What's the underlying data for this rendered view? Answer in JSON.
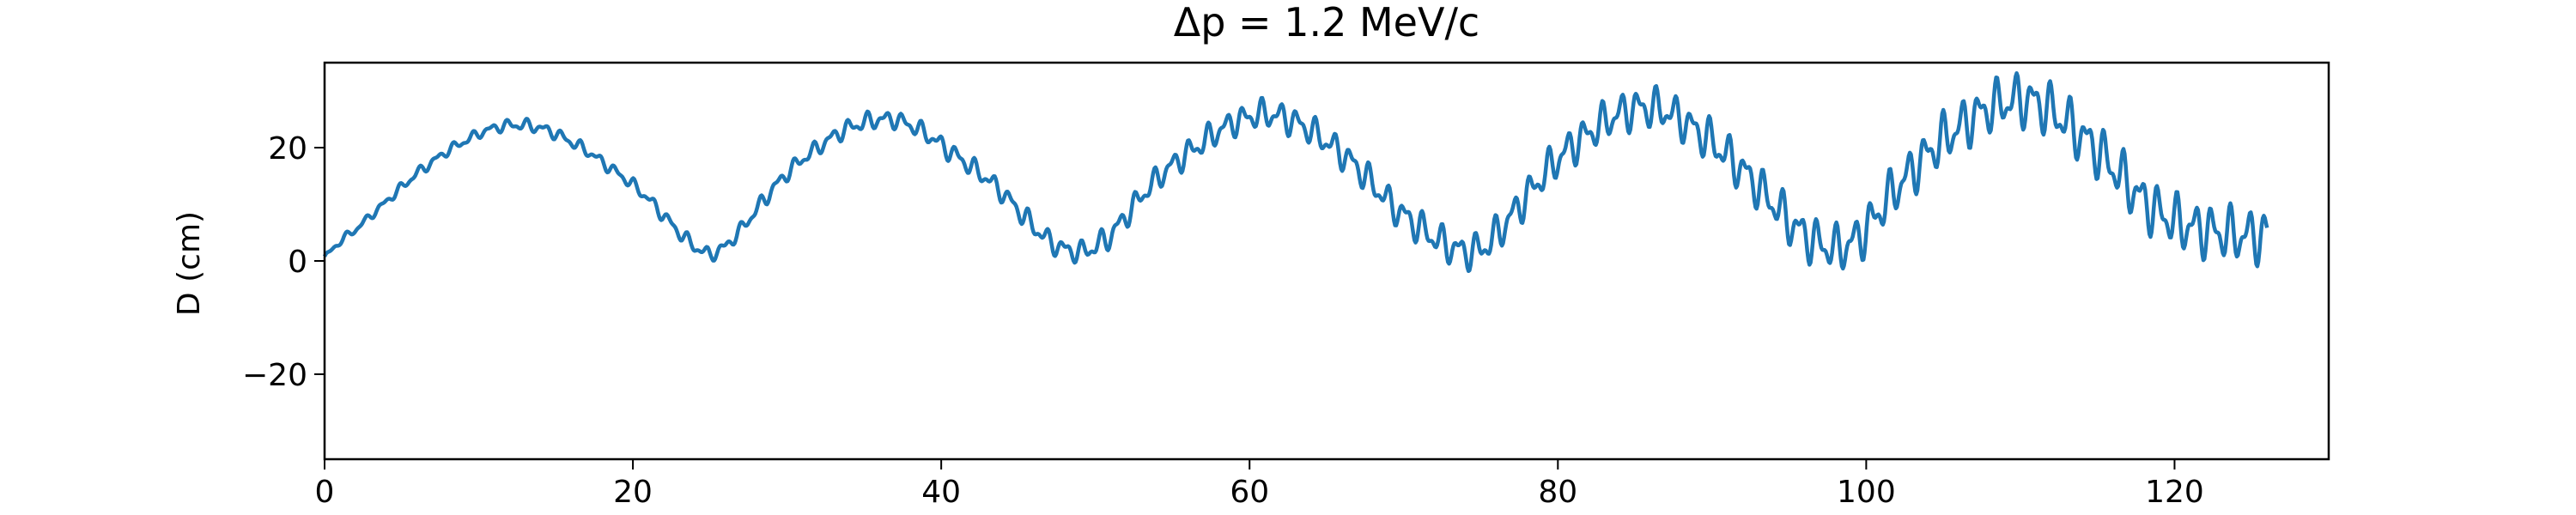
{
  "chart_data": {
    "type": "line",
    "title": "Δp = 1.2 MeV/c",
    "xlabel": "",
    "ylabel": "D (cm)",
    "xlim": [
      0,
      130
    ],
    "ylim": [
      -35,
      35
    ],
    "x_ticks": [
      0,
      20,
      40,
      60,
      80,
      100,
      120
    ],
    "x_tick_labels": [
      "0",
      "20",
      "40",
      "60",
      "80",
      "100",
      "120"
    ],
    "y_ticks": [
      -20,
      0,
      20
    ],
    "y_tick_labels": [
      "−20",
      "0",
      "20"
    ],
    "grid": false,
    "legend": "none",
    "series": [
      {
        "color": "#1f77b4",
        "x": [
          0,
          1,
          2,
          3,
          4,
          5,
          6,
          7,
          8,
          9,
          10,
          11,
          12,
          13,
          14,
          15,
          16,
          17,
          18,
          19,
          20,
          21,
          22,
          23,
          24,
          25,
          26,
          27,
          28,
          29,
          30,
          31,
          32,
          33,
          34,
          35,
          36,
          37,
          38,
          39,
          40,
          41,
          42,
          43,
          44,
          45,
          46,
          47,
          48,
          49,
          50,
          51,
          52,
          53,
          54,
          55,
          56,
          57,
          58,
          59,
          60,
          61,
          62,
          63,
          64,
          65,
          66,
          67,
          68,
          69,
          70,
          71,
          72,
          73,
          74,
          75,
          76,
          77,
          78,
          79,
          80,
          81,
          82,
          83,
          84,
          85,
          86,
          87,
          88,
          89,
          90,
          91,
          92,
          93,
          94,
          95,
          96,
          97,
          98,
          99,
          100,
          101,
          102,
          103,
          104,
          105,
          106,
          107,
          108,
          109,
          110,
          111,
          112,
          113,
          114,
          115,
          116,
          117,
          118,
          119,
          120,
          121,
          122,
          123,
          124,
          125,
          126
        ],
        "y": [
          0.5,
          3.5,
          5.5,
          8,
          10.5,
          13,
          15.5,
          17.5,
          19.5,
          21,
          22.5,
          23.5,
          24,
          24,
          23.5,
          22.5,
          21,
          19.5,
          17.5,
          15.5,
          13.5,
          11,
          8,
          5,
          2.5,
          1,
          2.5,
          5.5,
          9,
          12.5,
          15.5,
          18,
          20,
          22,
          23.5,
          24.5,
          25,
          25,
          24,
          22.5,
          20.5,
          18.5,
          16.5,
          14.5,
          12,
          9,
          6,
          3.5,
          2,
          1.5,
          2.5,
          4.5,
          8,
          11.5,
          14.5,
          17,
          19,
          21,
          23,
          24.5,
          25.5,
          26,
          25.5,
          24.5,
          23,
          21,
          19,
          16.5,
          13.5,
          10.5,
          8,
          6,
          4,
          2.5,
          1.5,
          2,
          4.5,
          8,
          11.5,
          15,
          18,
          20.5,
          22.5,
          24.5,
          26,
          27,
          27,
          26.5,
          25,
          23,
          21,
          18.5,
          16,
          13,
          10,
          7,
          4.5,
          3,
          2,
          3,
          5.5,
          9.5,
          13,
          16,
          19,
          21.5,
          23.5,
          25.5,
          27,
          28,
          28.5,
          28,
          26.5,
          24.5,
          22,
          19.5,
          16.5,
          13.5,
          10.5,
          8.5,
          7,
          6,
          5.5,
          5,
          4.5,
          4.5,
          4.5
        ],
        "noise_amplitude": [
          0.8,
          0.8,
          0.8,
          0.8,
          0.8,
          1.0,
          1.0,
          1.0,
          1.0,
          1.0,
          1.0,
          1.0,
          1.2,
          1.2,
          1.2,
          1.2,
          1.2,
          1.2,
          1.2,
          1.2,
          1.2,
          1.2,
          1.4,
          1.4,
          1.4,
          1.4,
          1.4,
          1.4,
          1.6,
          1.6,
          1.6,
          1.6,
          1.6,
          1.6,
          1.8,
          1.8,
          1.8,
          1.8,
          1.8,
          1.8,
          2.0,
          2.0,
          2.0,
          2.0,
          2.0,
          2.2,
          2.2,
          2.2,
          2.2,
          2.2,
          2.5,
          2.5,
          2.5,
          2.5,
          2.5,
          2.5,
          2.8,
          2.8,
          2.8,
          2.8,
          2.8,
          3.0,
          3.0,
          3.0,
          3.0,
          3.0,
          3.2,
          3.2,
          3.2,
          3.2,
          3.5,
          3.5,
          3.5,
          3.5,
          3.5,
          3.8,
          3.8,
          3.8,
          3.8,
          3.8,
          4.0,
          4.0,
          4.0,
          4.0,
          4.0,
          4.2,
          4.2,
          4.2,
          4.2,
          4.2,
          4.5,
          4.5,
          4.5,
          4.5,
          4.5,
          4.8,
          4.8,
          4.8,
          4.8,
          4.8,
          5.0,
          5.0,
          5.0,
          5.0,
          5.0,
          5.2,
          5.2,
          5.2,
          5.2,
          5.2,
          5.5,
          5.5,
          5.5,
          5.5,
          5.5,
          5.5,
          5.5,
          5.5,
          5.5,
          5.5,
          5.5,
          5.5,
          5.5,
          5.5,
          5.5,
          5.5,
          5.5
        ]
      }
    ]
  }
}
